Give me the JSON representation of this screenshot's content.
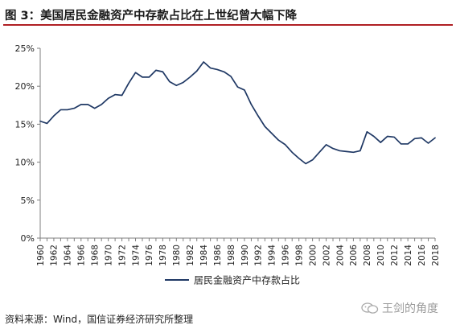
{
  "header": {
    "title": "图 3：美国居民金融资产中存款占比在上世纪曾大幅下降"
  },
  "footer": {
    "source": "资料来源：Wind，国信证券经济研究所整理",
    "watermark": "王剑的角度",
    "watermark_icon": "wechat-icon"
  },
  "chart_data": {
    "type": "line",
    "title": "",
    "xlabel": "",
    "ylabel": "",
    "ylim": [
      0,
      25
    ],
    "yticks": [
      "0%",
      "5%",
      "10%",
      "15%",
      "20%",
      "25%"
    ],
    "xticks": [
      "1960",
      "1962",
      "1964",
      "1966",
      "1968",
      "1970",
      "1972",
      "1974",
      "1976",
      "1978",
      "1980",
      "1982",
      "1984",
      "1986",
      "1988",
      "1990",
      "1992",
      "1994",
      "1996",
      "1998",
      "2000",
      "2002",
      "2004",
      "2006",
      "2008",
      "2010",
      "2012",
      "2014",
      "2016",
      "2018"
    ],
    "x": [
      1960,
      1961,
      1962,
      1963,
      1964,
      1965,
      1966,
      1967,
      1968,
      1969,
      1970,
      1971,
      1972,
      1973,
      1974,
      1975,
      1976,
      1977,
      1978,
      1979,
      1980,
      1981,
      1982,
      1983,
      1984,
      1985,
      1986,
      1987,
      1988,
      1989,
      1990,
      1991,
      1992,
      1993,
      1994,
      1995,
      1996,
      1997,
      1998,
      1999,
      2000,
      2001,
      2002,
      2003,
      2004,
      2005,
      2006,
      2007,
      2008,
      2009,
      2010,
      2011,
      2012,
      2013,
      2014,
      2015,
      2016,
      2017,
      2018
    ],
    "series": [
      {
        "name": "居民金融资产中存款占比",
        "color": "#1f3864",
        "values": [
          15.4,
          15.1,
          16.1,
          16.9,
          16.9,
          17.1,
          17.6,
          17.6,
          17.1,
          17.6,
          18.4,
          18.9,
          18.8,
          20.4,
          21.8,
          21.2,
          21.2,
          22.1,
          21.9,
          20.6,
          20.1,
          20.5,
          21.2,
          22.0,
          23.2,
          22.4,
          22.2,
          21.9,
          21.3,
          19.9,
          19.5,
          17.6,
          16.1,
          14.7,
          13.8,
          12.9,
          12.3,
          11.3,
          10.5,
          9.8,
          10.3,
          11.3,
          12.3,
          11.8,
          11.5,
          11.4,
          11.3,
          11.5,
          14.0,
          13.4,
          12.6,
          13.4,
          13.3,
          12.4,
          12.4,
          13.1,
          13.2,
          12.5,
          13.2
        ]
      }
    ],
    "legend": "bottom-center",
    "grid": false
  }
}
